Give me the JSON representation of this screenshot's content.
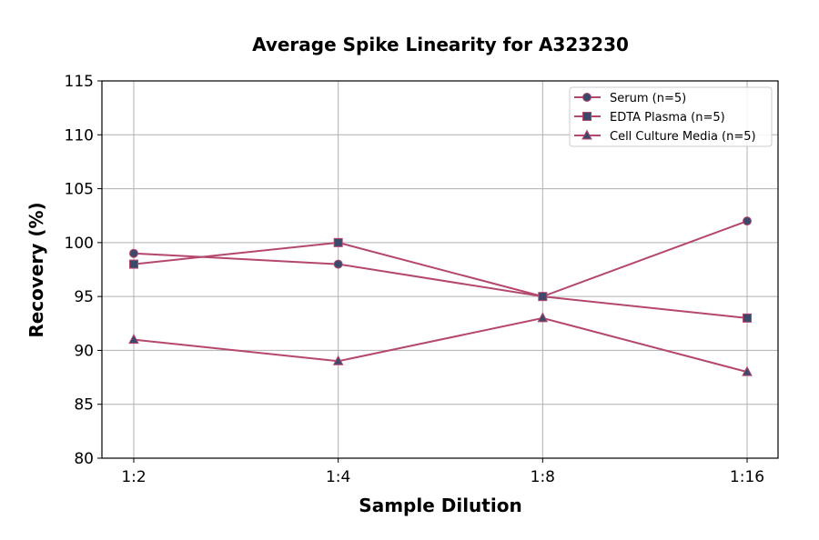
{
  "chart_data": {
    "type": "line",
    "title": "Average Spike Linearity for A323230",
    "xlabel": "Sample Dilution",
    "ylabel": "Recovery (%)",
    "categories": [
      "1:2",
      "1:4",
      "1:8",
      "1:16"
    ],
    "ylim": [
      80,
      115
    ],
    "yticks": [
      80,
      85,
      90,
      95,
      100,
      105,
      110,
      115
    ],
    "grid": true,
    "legend_position": "top-right",
    "line_color": "#b5476f",
    "marker_color": "#3b4a6b",
    "series": [
      {
        "name": "Serum (n=5)",
        "marker": "circle",
        "values": [
          99,
          98,
          95,
          102
        ]
      },
      {
        "name": "EDTA Plasma (n=5)",
        "marker": "square",
        "values": [
          98,
          100,
          95,
          93
        ]
      },
      {
        "name": "Cell Culture Media (n=5)",
        "marker": "triangle",
        "values": [
          91,
          89,
          93,
          88
        ]
      }
    ]
  }
}
